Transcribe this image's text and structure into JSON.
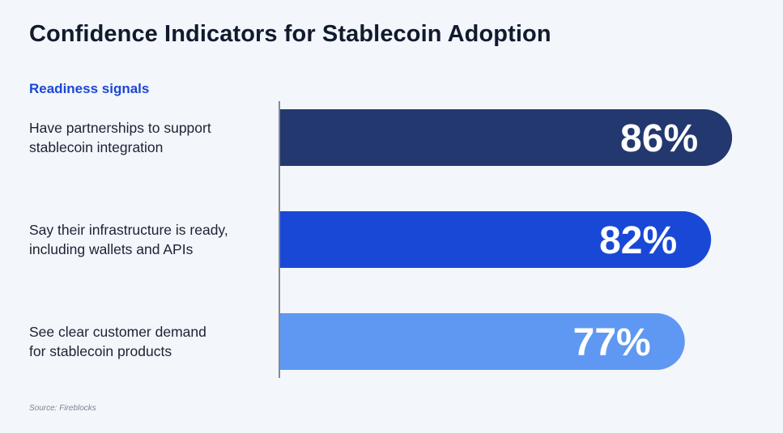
{
  "header": {
    "title": "Confidence Indicators for Stablecoin Adoption",
    "subtitle": "Readiness signals"
  },
  "footer": {
    "source": "Source: Fireblocks"
  },
  "chart_data": {
    "type": "bar",
    "orientation": "horizontal",
    "title": "Confidence Indicators for Stablecoin Adoption",
    "subtitle": "Readiness signals",
    "categories": [
      [
        "Have partnerships to support",
        "stablecoin integration"
      ],
      [
        "Say their infrastructure is ready,",
        "including wallets and APIs"
      ],
      [
        "See clear customer demand",
        "for stablecoin products"
      ]
    ],
    "values": [
      86,
      82,
      77
    ],
    "value_labels": [
      "86%",
      "82%",
      "77%"
    ],
    "colors": [
      "#22386f",
      "#1a48d6",
      "#5e98f2"
    ],
    "xlim": [
      0,
      100
    ],
    "grid": false,
    "legend": "none"
  }
}
